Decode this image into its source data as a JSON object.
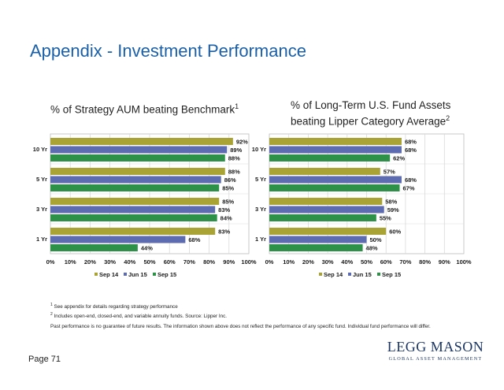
{
  "page": {
    "title": "Appendix - Investment Performance",
    "page_number": "Page 71"
  },
  "left_title": {
    "text": "% of Strategy AUM beating Benchmark",
    "sup": "1"
  },
  "right_title": {
    "line1": "% of Long-Term U.S. Fund Assets",
    "line2": "beating Lipper Category Average",
    "sup": "2"
  },
  "colors": {
    "Sep 14": "#a9a235",
    "Jun 15": "#5d6bb0",
    "Sep 15": "#2e9148",
    "title": "#1a5fa8"
  },
  "chart_data": [
    {
      "type": "bar",
      "orientation": "horizontal",
      "categories": [
        "10 Yr",
        "5 Yr",
        "3 Yr",
        "1 Yr"
      ],
      "series": [
        {
          "name": "Sep 14",
          "values": [
            92,
            88,
            85,
            83
          ]
        },
        {
          "name": "Jun 15",
          "values": [
            89,
            86,
            83,
            68
          ]
        },
        {
          "name": "Sep 15",
          "values": [
            88,
            85,
            84,
            44
          ]
        }
      ],
      "value_labels": [
        [
          "92%",
          "88%",
          "85%",
          "83%"
        ],
        [
          "89%",
          "86%",
          "83%",
          "68%"
        ],
        [
          "88%",
          "85%",
          "84%",
          "44%"
        ]
      ],
      "x_ticks": [
        "0%",
        "10%",
        "20%",
        "30%",
        "40%",
        "50%",
        "60%",
        "70%",
        "80%",
        "90%",
        "100%"
      ],
      "xlim": [
        0,
        100
      ],
      "grid": true,
      "legend": "bottom"
    },
    {
      "type": "bar",
      "orientation": "horizontal",
      "categories": [
        "10 Yr",
        "5 Yr",
        "3 Yr",
        "1 Yr"
      ],
      "series": [
        {
          "name": "Sep 14",
          "values": [
            68,
            57,
            58,
            60
          ]
        },
        {
          "name": "Jun 15",
          "values": [
            68,
            68,
            59,
            50
          ]
        },
        {
          "name": "Sep 15",
          "values": [
            62,
            67,
            55,
            48
          ]
        }
      ],
      "value_labels": [
        [
          "68%",
          "57%",
          "58%",
          "60%"
        ],
        [
          "68%",
          "68%",
          "59%",
          "50%"
        ],
        [
          "62%",
          "67%",
          "55%",
          "48%"
        ]
      ],
      "x_ticks": [
        "0%",
        "10%",
        "20%",
        "30%",
        "40%",
        "50%",
        "60%",
        "70%",
        "80%",
        "90%",
        "100%"
      ],
      "xlim": [
        0,
        100
      ],
      "grid": true,
      "legend": "bottom"
    }
  ],
  "footnotes": [
    {
      "marker": "1",
      "text": " See appendix for details regarding strategy performance"
    },
    {
      "marker": "2",
      "text": " Includes open-end, closed-end, and variable annuity funds. Source: Lipper Inc."
    }
  ],
  "disclaimer": "Past performance is no guarantee of future results. The information shown above does not reflect the performance of any specific fund. Individual fund performance will differ.",
  "logo": {
    "main": "LEGG MASON",
    "sub": "GLOBAL ASSET MANAGEMENT"
  }
}
